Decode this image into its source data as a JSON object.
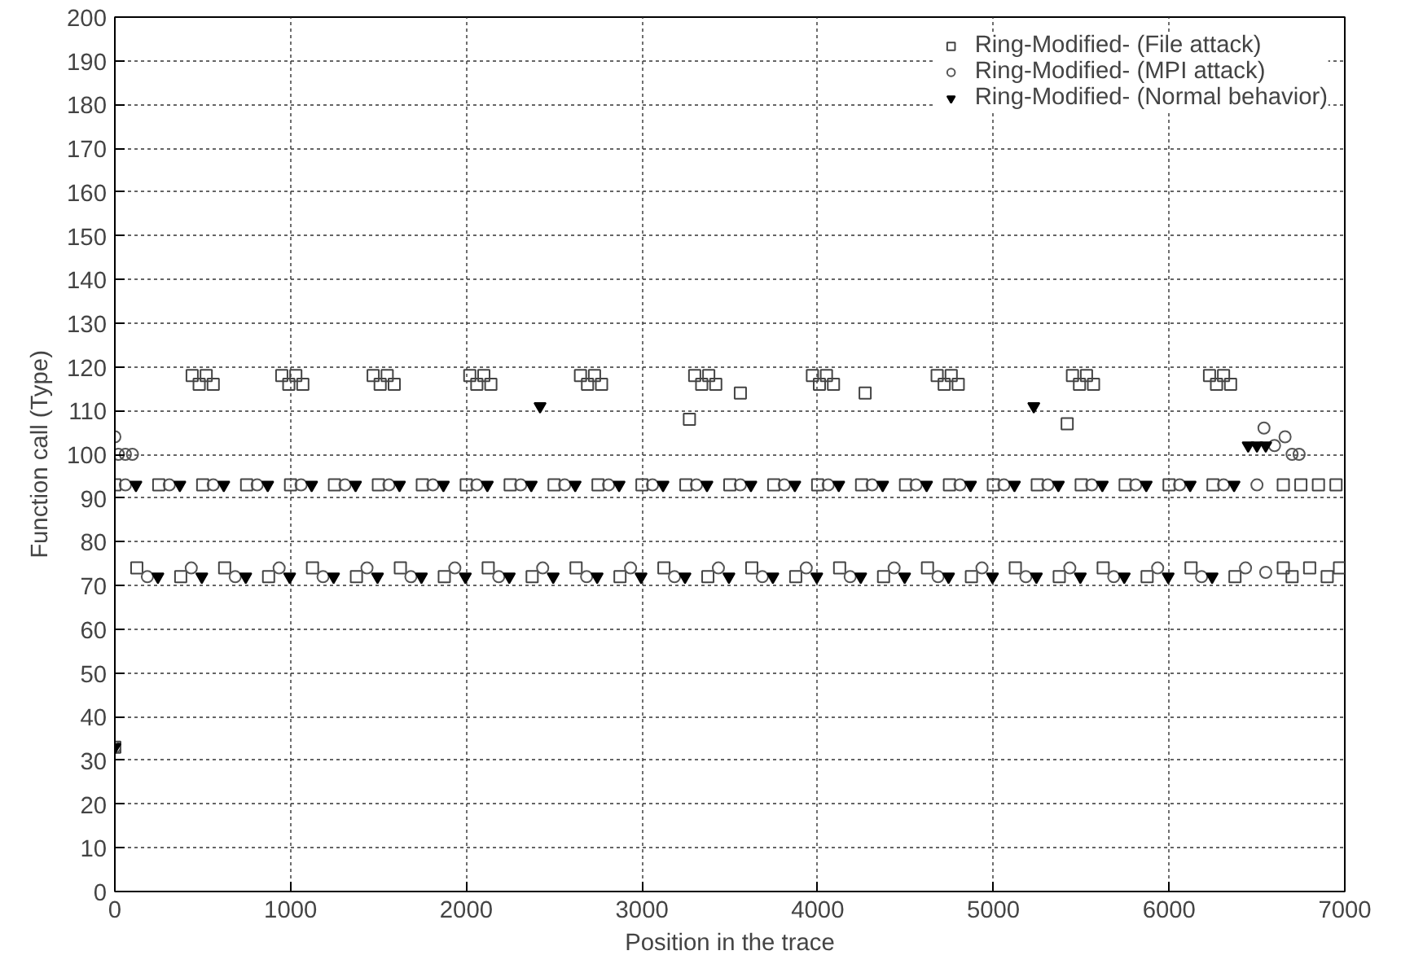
{
  "chart_data": {
    "type": "scatter",
    "xlabel": "Position in the trace",
    "ylabel": "Function call (Type)",
    "xlim": [
      0,
      7000
    ],
    "ylim": [
      0,
      200
    ],
    "xticks": [
      0,
      1000,
      2000,
      3000,
      4000,
      5000,
      6000,
      7000
    ],
    "yticks": [
      0,
      10,
      20,
      30,
      40,
      50,
      60,
      70,
      80,
      90,
      100,
      110,
      120,
      130,
      140,
      150,
      160,
      170,
      180,
      190,
      200
    ],
    "grid": true,
    "legend": "top right",
    "series": [
      {
        "name": "Ring-Modified- (File attack)",
        "color": "#444444",
        "marker": "square",
        "x": [
          0,
          0,
          250,
          500,
          750,
          1000,
          1250,
          1500,
          1750,
          2000,
          2250,
          2500,
          2750,
          3000,
          3250,
          3500,
          3750,
          4000,
          4250,
          4500,
          4750,
          5000,
          5250,
          5500,
          5750,
          6000,
          6250,
          125,
          375,
          625,
          875,
          1125,
          1375,
          1625,
          1875,
          2125,
          2375,
          2625,
          2875,
          3125,
          3375,
          3625,
          3875,
          4125,
          4375,
          4625,
          4875,
          5125,
          5375,
          5625,
          5875,
          6125,
          6375,
          440,
          480,
          520,
          560,
          950,
          990,
          1030,
          1070,
          1470,
          1510,
          1550,
          1590,
          2020,
          2060,
          2100,
          2140,
          2650,
          2690,
          2730,
          2770,
          3300,
          3340,
          3380,
          3420,
          3970,
          4010,
          4050,
          4090,
          4680,
          4720,
          4760,
          4800,
          5450,
          5490,
          5530,
          5570,
          6230,
          6270,
          6310,
          6350,
          3270,
          3560,
          4270,
          5420,
          6650,
          6750,
          6850,
          6950,
          6650,
          6700,
          6800,
          6900,
          6970
        ],
        "values": [
          33,
          93,
          93,
          93,
          93,
          93,
          93,
          93,
          93,
          93,
          93,
          93,
          93,
          93,
          93,
          93,
          93,
          93,
          93,
          93,
          93,
          93,
          93,
          93,
          93,
          93,
          93,
          74,
          72,
          74,
          72,
          74,
          72,
          74,
          72,
          74,
          72,
          74,
          72,
          74,
          72,
          74,
          72,
          74,
          72,
          74,
          72,
          74,
          72,
          74,
          72,
          74,
          72,
          118,
          116,
          118,
          116,
          118,
          116,
          118,
          116,
          118,
          116,
          118,
          116,
          118,
          116,
          118,
          116,
          118,
          116,
          118,
          116,
          118,
          116,
          118,
          116,
          118,
          116,
          118,
          116,
          118,
          116,
          118,
          116,
          118,
          116,
          118,
          116,
          118,
          116,
          118,
          116,
          108,
          114,
          114,
          107,
          93,
          93,
          93,
          93,
          74,
          72,
          74,
          72,
          74
        ]
      },
      {
        "name": "Ring-Modified- (MPI attack)",
        "color": "#555555",
        "marker": "circle",
        "x": [
          0,
          20,
          60,
          100,
          0,
          60,
          310,
          560,
          810,
          1060,
          1310,
          1560,
          1810,
          2060,
          2310,
          2560,
          2810,
          3060,
          3310,
          3560,
          3810,
          4060,
          4310,
          4560,
          4810,
          5060,
          5310,
          5560,
          5810,
          6060,
          6310,
          6500,
          185,
          435,
          685,
          935,
          1185,
          1435,
          1685,
          1935,
          2185,
          2435,
          2685,
          2935,
          3185,
          3435,
          3685,
          3935,
          4185,
          4435,
          4685,
          4935,
          5185,
          5435,
          5685,
          5935,
          6185,
          6435,
          6550,
          6540,
          6660,
          6600,
          6700,
          6740
        ],
        "values": [
          104,
          100,
          100,
          100,
          33,
          93,
          93,
          93,
          93,
          93,
          93,
          93,
          93,
          93,
          93,
          93,
          93,
          93,
          93,
          93,
          93,
          93,
          93,
          93,
          93,
          93,
          93,
          93,
          93,
          93,
          93,
          93,
          72,
          74,
          72,
          74,
          72,
          74,
          72,
          74,
          72,
          74,
          72,
          74,
          72,
          74,
          72,
          74,
          72,
          74,
          72,
          74,
          72,
          74,
          72,
          74,
          72,
          74,
          73,
          106,
          104,
          102,
          100,
          100
        ]
      },
      {
        "name": "Ring-Modified- (Normal behavior)",
        "color": "#000000",
        "marker": "triangle",
        "x": [
          0,
          2420,
          5230,
          120,
          370,
          620,
          870,
          1120,
          1370,
          1620,
          1870,
          2120,
          2370,
          2620,
          2870,
          3120,
          3370,
          3620,
          3870,
          4120,
          4370,
          4620,
          4870,
          5120,
          5370,
          5620,
          5870,
          6120,
          6370,
          245,
          495,
          745,
          995,
          1245,
          1495,
          1745,
          1995,
          2245,
          2495,
          2745,
          2995,
          3245,
          3495,
          3745,
          3995,
          4245,
          4495,
          4745,
          4995,
          5245,
          5495,
          5745,
          5995,
          6245,
          6450,
          6500,
          6550
        ],
        "values": [
          33,
          111,
          111,
          93,
          93,
          93,
          93,
          93,
          93,
          93,
          93,
          93,
          93,
          93,
          93,
          93,
          93,
          93,
          93,
          93,
          93,
          93,
          93,
          93,
          93,
          93,
          93,
          93,
          93,
          72,
          72,
          72,
          72,
          72,
          72,
          72,
          72,
          72,
          72,
          72,
          72,
          72,
          72,
          72,
          72,
          72,
          72,
          72,
          72,
          72,
          72,
          72,
          72,
          72,
          102,
          102,
          102
        ]
      }
    ]
  }
}
